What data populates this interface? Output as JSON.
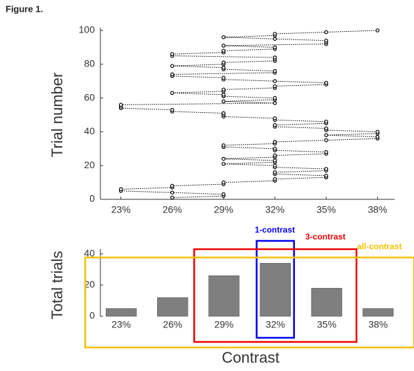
{
  "figure_label": "Figure 1.",
  "chart_data": [
    {
      "type": "line",
      "ylabel": "Trial number",
      "color": "#000000",
      "x": [
        26,
        29,
        29,
        26,
        23,
        23,
        26,
        26,
        29,
        29,
        32,
        32,
        35,
        35,
        32,
        32,
        35,
        35,
        32,
        32,
        29,
        32,
        32,
        29,
        32,
        32,
        35,
        35,
        32,
        32,
        29,
        29,
        32,
        32,
        35,
        38,
        38,
        35,
        38,
        38,
        35,
        35,
        32,
        32,
        35,
        35,
        32,
        32,
        29,
        29,
        29,
        26,
        26,
        23,
        23,
        23,
        32,
        29,
        32,
        32,
        29,
        29,
        26,
        29,
        29,
        32,
        32,
        35,
        35,
        32,
        29,
        29,
        26,
        26,
        32,
        32,
        29,
        29,
        26,
        29,
        29,
        32,
        32,
        32,
        26,
        26,
        29,
        29,
        32,
        32,
        29,
        35,
        35,
        35,
        32,
        29,
        32,
        32,
        35,
        38
      ],
      "values": [
        1,
        2,
        3,
        4,
        5,
        6,
        7,
        8,
        9,
        10,
        11,
        12,
        13,
        14,
        15,
        16,
        17,
        18,
        19,
        20,
        21,
        22,
        23,
        24,
        25,
        26,
        27,
        28,
        29,
        30,
        31,
        32,
        33,
        34,
        35,
        36,
        37,
        38,
        39,
        40,
        41,
        42,
        43,
        44,
        45,
        46,
        47,
        48,
        49,
        50,
        51,
        52,
        53,
        54,
        55,
        56,
        57,
        58,
        59,
        60,
        61,
        62,
        63,
        64,
        65,
        66,
        67,
        68,
        69,
        70,
        71,
        72,
        73,
        74,
        75,
        76,
        77,
        78,
        79,
        80,
        81,
        82,
        83,
        84,
        85,
        86,
        87,
        88,
        89,
        90,
        91,
        92,
        93,
        94,
        95,
        96,
        97,
        98,
        99,
        100
      ],
      "xlim": [
        21.8,
        39
      ],
      "xticks": [
        {
          "value": 23,
          "label": "23%"
        },
        {
          "value": 26,
          "label": "26%"
        },
        {
          "value": 29,
          "label": "29%"
        },
        {
          "value": 32,
          "label": "32%"
        },
        {
          "value": 35,
          "label": "35%"
        },
        {
          "value": 38,
          "label": "38%"
        }
      ],
      "ylim": [
        0,
        100
      ],
      "yticks": [
        0,
        20,
        40,
        60,
        80,
        100
      ]
    },
    {
      "type": "bar",
      "xlabel": "Contrast",
      "ylabel": "Total trials",
      "color": "#7f7f7f",
      "categories": [
        "23%",
        "26%",
        "29%",
        "32%",
        "35%",
        "38%"
      ],
      "values": [
        5,
        12,
        26,
        34,
        18,
        5
      ],
      "ylim": [
        0,
        43
      ],
      "yticks": [
        0,
        20,
        40
      ],
      "annotations": [
        {
          "text": "1-contrast",
          "color": "#0000ee",
          "categories": [
            "32%"
          ]
        },
        {
          "text": "3-contrast",
          "color": "#ee0000",
          "categories": [
            "29%",
            "32%",
            "35%"
          ]
        },
        {
          "text": "all-contrast",
          "color": "#f5c000",
          "categories": [
            "23%",
            "26%",
            "29%",
            "32%",
            "35%",
            "38%"
          ]
        }
      ]
    }
  ]
}
